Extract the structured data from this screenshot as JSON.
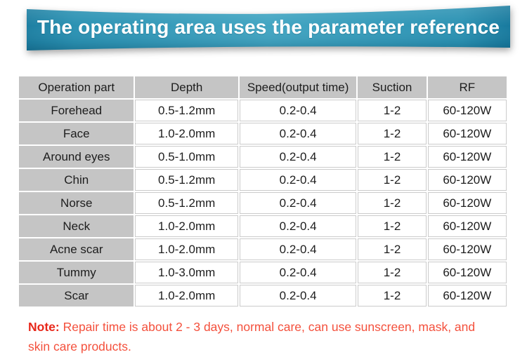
{
  "banner": {
    "title": "The operating area uses the parameter reference",
    "bg_color_edge": "#1b7ea1",
    "bg_color_center": "#42a5c2",
    "text_color": "#ffffff"
  },
  "table": {
    "headers": [
      "Operation part",
      "Depth",
      "Speed(output time)",
      "Suction",
      "RF"
    ],
    "rows": [
      [
        "Forehead",
        "0.5-1.2mm",
        "0.2-0.4",
        "1-2",
        "60-120W"
      ],
      [
        "Face",
        "1.0-2.0mm",
        "0.2-0.4",
        "1-2",
        "60-120W"
      ],
      [
        "Around eyes",
        "0.5-1.0mm",
        "0.2-0.4",
        "1-2",
        "60-120W"
      ],
      [
        "Chin",
        "0.5-1.2mm",
        "0.2-0.4",
        "1-2",
        "60-120W"
      ],
      [
        "Norse",
        "0.5-1.2mm",
        "0.2-0.4",
        "1-2",
        "60-120W"
      ],
      [
        "Neck",
        "1.0-2.0mm",
        "0.2-0.4",
        "1-2",
        "60-120W"
      ],
      [
        "Acne scar",
        "1.0-2.0mm",
        "0.2-0.4",
        "1-2",
        "60-120W"
      ],
      [
        "Tummy",
        "1.0-3.0mm",
        "0.2-0.4",
        "1-2",
        "60-120W"
      ],
      [
        "Scar",
        "1.0-2.0mm",
        "0.2-0.4",
        "1-2",
        "60-120W"
      ]
    ],
    "header_bg_color": "#c5c5c5",
    "cell_border_color": "#cbcbcb",
    "text_color": "#1d1d1d"
  },
  "note": {
    "label": "Note:",
    "text": " Repair time is about 2 - 3 days, normal care, can use sunscreen, mask, and skin care products.",
    "label_color": "#e8271a",
    "text_color": "#f4503c"
  }
}
